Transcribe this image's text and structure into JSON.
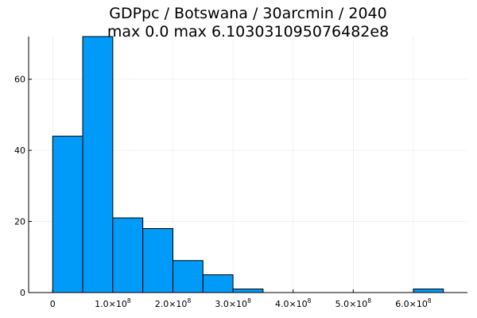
{
  "chart_data": {
    "type": "bar",
    "title_lines": [
      "GDPpc / Botswana / 30arcmin / 2040",
      "max 0.0  max 6.103031095076482e8"
    ],
    "bin_edges": [
      0,
      50000000,
      100000000,
      150000000,
      200000000,
      250000000,
      300000000,
      350000000,
      400000000,
      450000000,
      500000000,
      550000000,
      600000000,
      650000000
    ],
    "values": [
      44,
      72,
      21,
      18,
      9,
      5,
      1,
      0,
      0,
      0,
      0,
      0,
      1
    ],
    "xlim": [
      -40000000,
      690000000
    ],
    "ylim": [
      0,
      72
    ],
    "x_ticks": [
      {
        "value": 0,
        "mantissa": "0",
        "exponent": ""
      },
      {
        "value": 100000000,
        "mantissa": "1.0×10",
        "exponent": "8"
      },
      {
        "value": 200000000,
        "mantissa": "2.0×10",
        "exponent": "8"
      },
      {
        "value": 300000000,
        "mantissa": "3.0×10",
        "exponent": "8"
      },
      {
        "value": 400000000,
        "mantissa": "4.0×10",
        "exponent": "8"
      },
      {
        "value": 500000000,
        "mantissa": "5.0×10",
        "exponent": "8"
      },
      {
        "value": 600000000,
        "mantissa": "6.0×10",
        "exponent": "8"
      }
    ],
    "y_ticks": [
      {
        "value": 0,
        "label": "0"
      },
      {
        "value": 20,
        "label": "20"
      },
      {
        "value": 40,
        "label": "40"
      },
      {
        "value": 60,
        "label": "60"
      }
    ],
    "bar_color": "#009af9",
    "grid": true,
    "legend": "none"
  }
}
